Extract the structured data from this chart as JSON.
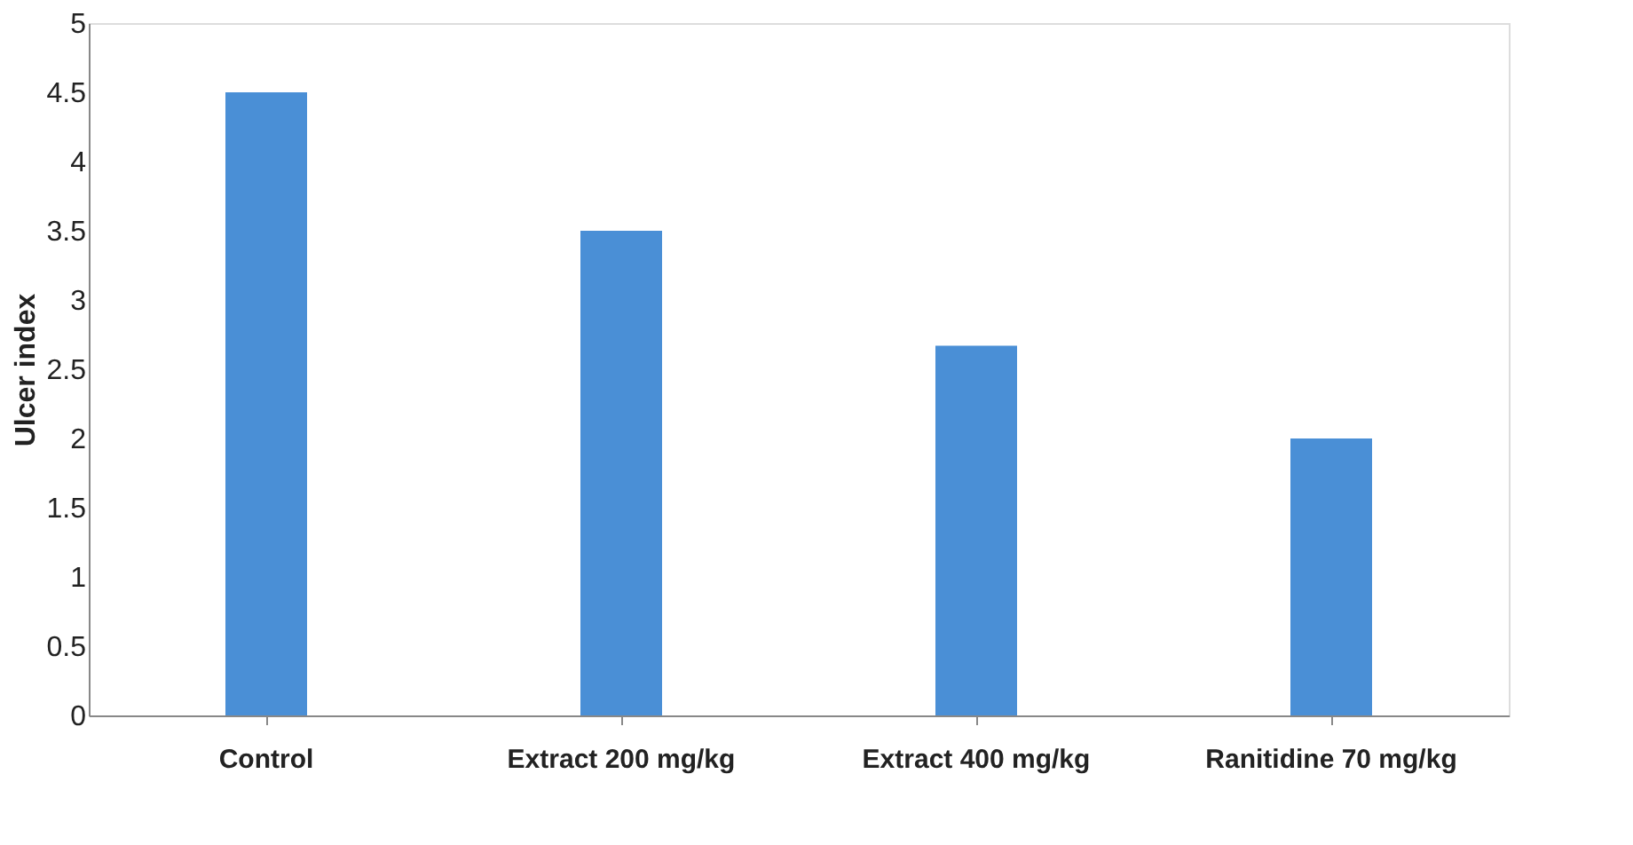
{
  "chart_data": {
    "type": "bar",
    "ylabel": "Ulcer index",
    "categories": [
      "Control",
      "Extract 200 mg/kg",
      "Extract 400 mg/kg",
      "Ranitidine 70 mg/kg"
    ],
    "values": [
      4.5,
      3.5,
      2.67,
      2.0
    ],
    "color": "#4a8fd6",
    "ylim": [
      0,
      5
    ],
    "yticks": [
      0,
      0.5,
      1,
      1.5,
      2,
      2.5,
      3,
      3.5,
      4,
      4.5,
      5
    ],
    "grid": false
  }
}
